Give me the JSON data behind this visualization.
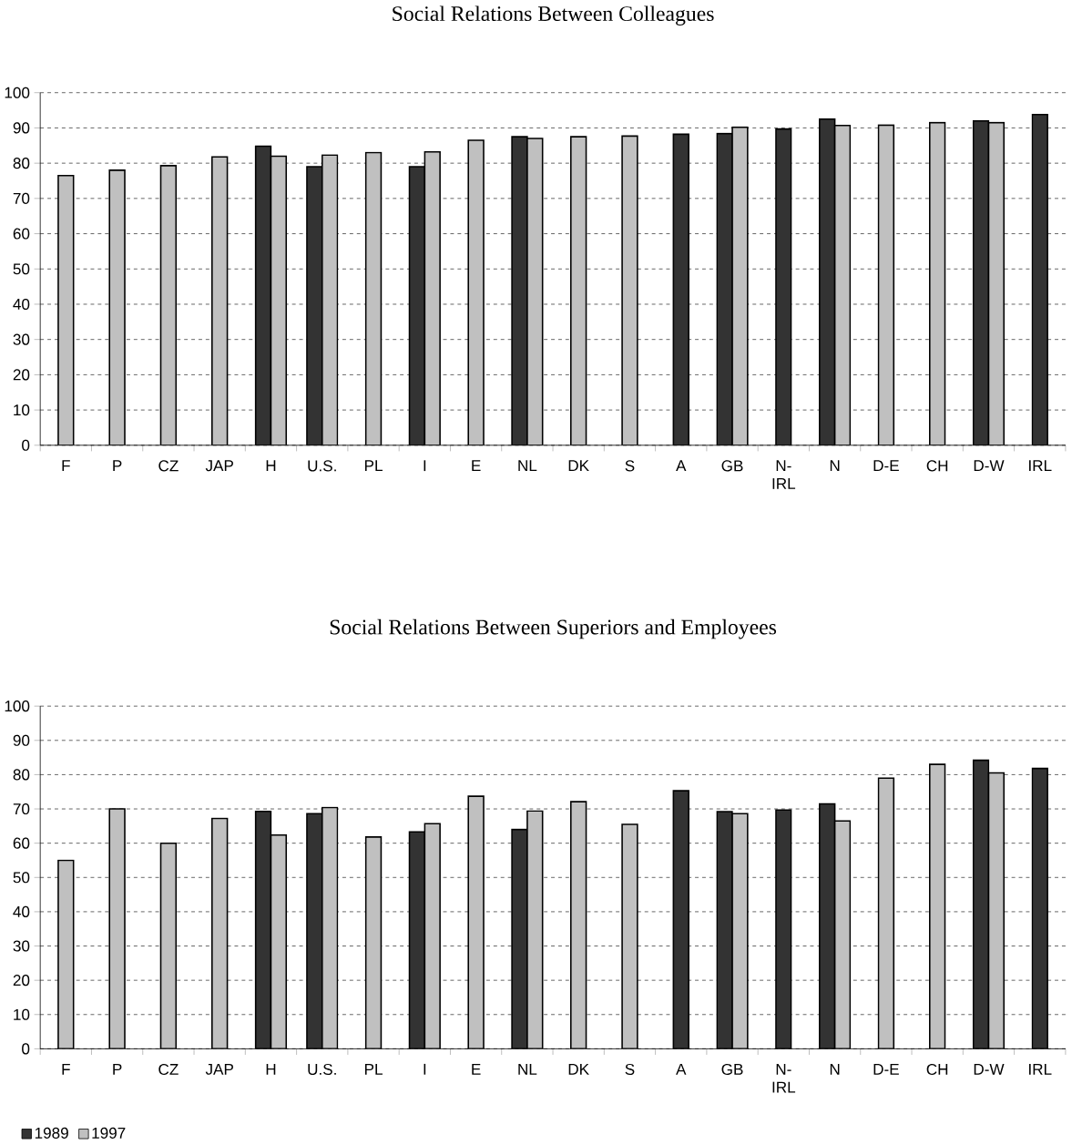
{
  "chart_data": [
    {
      "type": "bar",
      "title": "Social Relations Between Colleagues",
      "categories": [
        "F",
        "P",
        "CZ",
        "JAP",
        "H",
        "U.S.",
        "PL",
        "I",
        "E",
        "NL",
        "DK",
        "S",
        "A",
        "GB",
        "N-IRL",
        "N",
        "D-E",
        "CH",
        "D-W",
        "IRL"
      ],
      "series": [
        {
          "color": "#333333",
          "values": [
            null,
            null,
            null,
            null,
            84.8,
            79,
            null,
            79,
            null,
            87.5,
            null,
            null,
            88.2,
            88.4,
            89.7,
            92.5,
            null,
            null,
            92,
            93.8
          ]
        },
        {
          "color": "#c0c0c0",
          "values": [
            76.5,
            78,
            79.3,
            81.8,
            82,
            82.3,
            83,
            83.2,
            86.5,
            87,
            87.5,
            87.7,
            null,
            90.2,
            null,
            90.7,
            90.8,
            91.5,
            91.5,
            null
          ]
        }
      ],
      "ylim": [
        0,
        100
      ],
      "yticks": [
        0,
        10,
        20,
        30,
        40,
        50,
        60,
        70,
        80,
        90,
        100
      ],
      "grid": "y",
      "legend": false
    },
    {
      "type": "bar",
      "title": "Social Relations Between Superiors and Employees",
      "categories": [
        "F",
        "P",
        "CZ",
        "JAP",
        "H",
        "U.S.",
        "PL",
        "I",
        "E",
        "NL",
        "DK",
        "S",
        "A",
        "GB",
        "N-IRL",
        "N",
        "D-E",
        "CH",
        "D-W",
        "IRL"
      ],
      "series": [
        {
          "name": "1989",
          "color": "#333333",
          "values": [
            null,
            null,
            null,
            null,
            69.3,
            68.6,
            null,
            63.3,
            null,
            64,
            null,
            null,
            75.3,
            69.2,
            69.7,
            71.5,
            null,
            null,
            84.2,
            81.8
          ]
        },
        {
          "name": "1997",
          "color": "#c0c0c0",
          "values": [
            55,
            70,
            60,
            67.2,
            62.4,
            70.4,
            61.8,
            65.7,
            73.7,
            69.4,
            72.1,
            65.5,
            null,
            68.6,
            null,
            66.5,
            79,
            83,
            80.5,
            null
          ]
        }
      ],
      "ylim": [
        0,
        100
      ],
      "yticks": [
        0,
        10,
        20,
        30,
        40,
        50,
        60,
        70,
        80,
        90,
        100
      ],
      "grid": "y",
      "legend": "bottom left"
    }
  ]
}
